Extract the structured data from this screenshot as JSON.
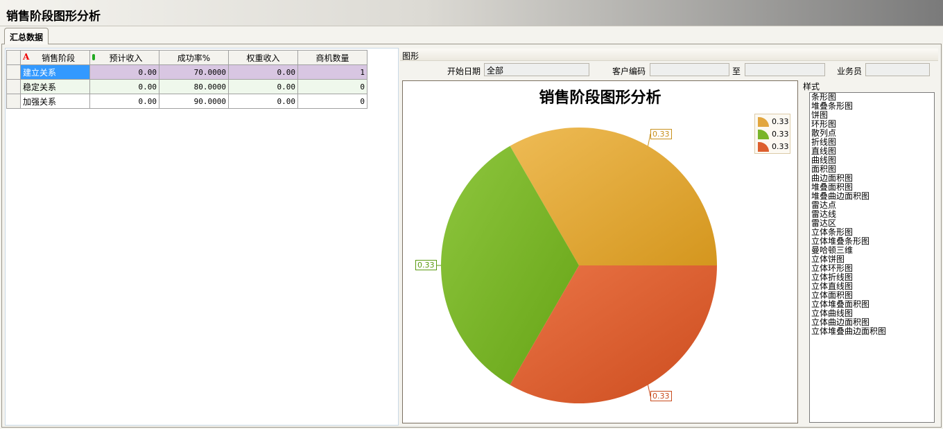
{
  "window": {
    "title": "销售阶段图形分析"
  },
  "tabs": [
    {
      "label": "汇总数据"
    }
  ],
  "grid": {
    "columns": [
      "销售阶段",
      "预计收入",
      "成功率%",
      "权重收入",
      "商机数量"
    ],
    "rows": [
      [
        "建立关系",
        "0.00",
        "70.0000",
        "0.00",
        "1"
      ],
      [
        "稳定关系",
        "0.00",
        "80.0000",
        "0.00",
        "0"
      ],
      [
        "加强关系",
        "0.00",
        "90.0000",
        "0.00",
        "0"
      ]
    ]
  },
  "chart_panel": {
    "group_label": "图形",
    "filters": {
      "start_date_label": "开始日期",
      "start_date_value": "全部",
      "customer_code_label": "客户编码",
      "customer_code_value": "",
      "to_label": "至",
      "to_value": "",
      "salesperson_label": "业务员",
      "salesperson_value": ""
    }
  },
  "chart_data": {
    "type": "pie",
    "title": "销售阶段图形分析",
    "values": [
      0.33,
      0.33,
      0.33
    ],
    "labels": [
      "0.33",
      "0.33",
      "0.33"
    ],
    "legend": [
      "0.33",
      "0.33",
      "0.33"
    ],
    "legend_position": "top-right",
    "colors": [
      "#e2a63e",
      "#7ab52a",
      "#dd5f2e"
    ]
  },
  "style_panel": {
    "label": "样式",
    "items": [
      "条形图",
      "堆叠条形图",
      "饼图",
      "环形图",
      "散列点",
      "折线图",
      "直线图",
      "曲线图",
      "面积图",
      "曲边面积图",
      "堆叠面积图",
      "堆叠曲边面积图",
      "雷达点",
      "雷达线",
      "雷达区",
      "立体条形图",
      "立体堆叠条形图",
      "曼哈顿三维",
      "立体饼图",
      "立体环形图",
      "立体折线图",
      "立体直线图",
      "立体面积图",
      "立体堆叠面积图",
      "立体曲线图",
      "立体曲边面积图",
      "立体堆叠曲边面积图"
    ]
  }
}
